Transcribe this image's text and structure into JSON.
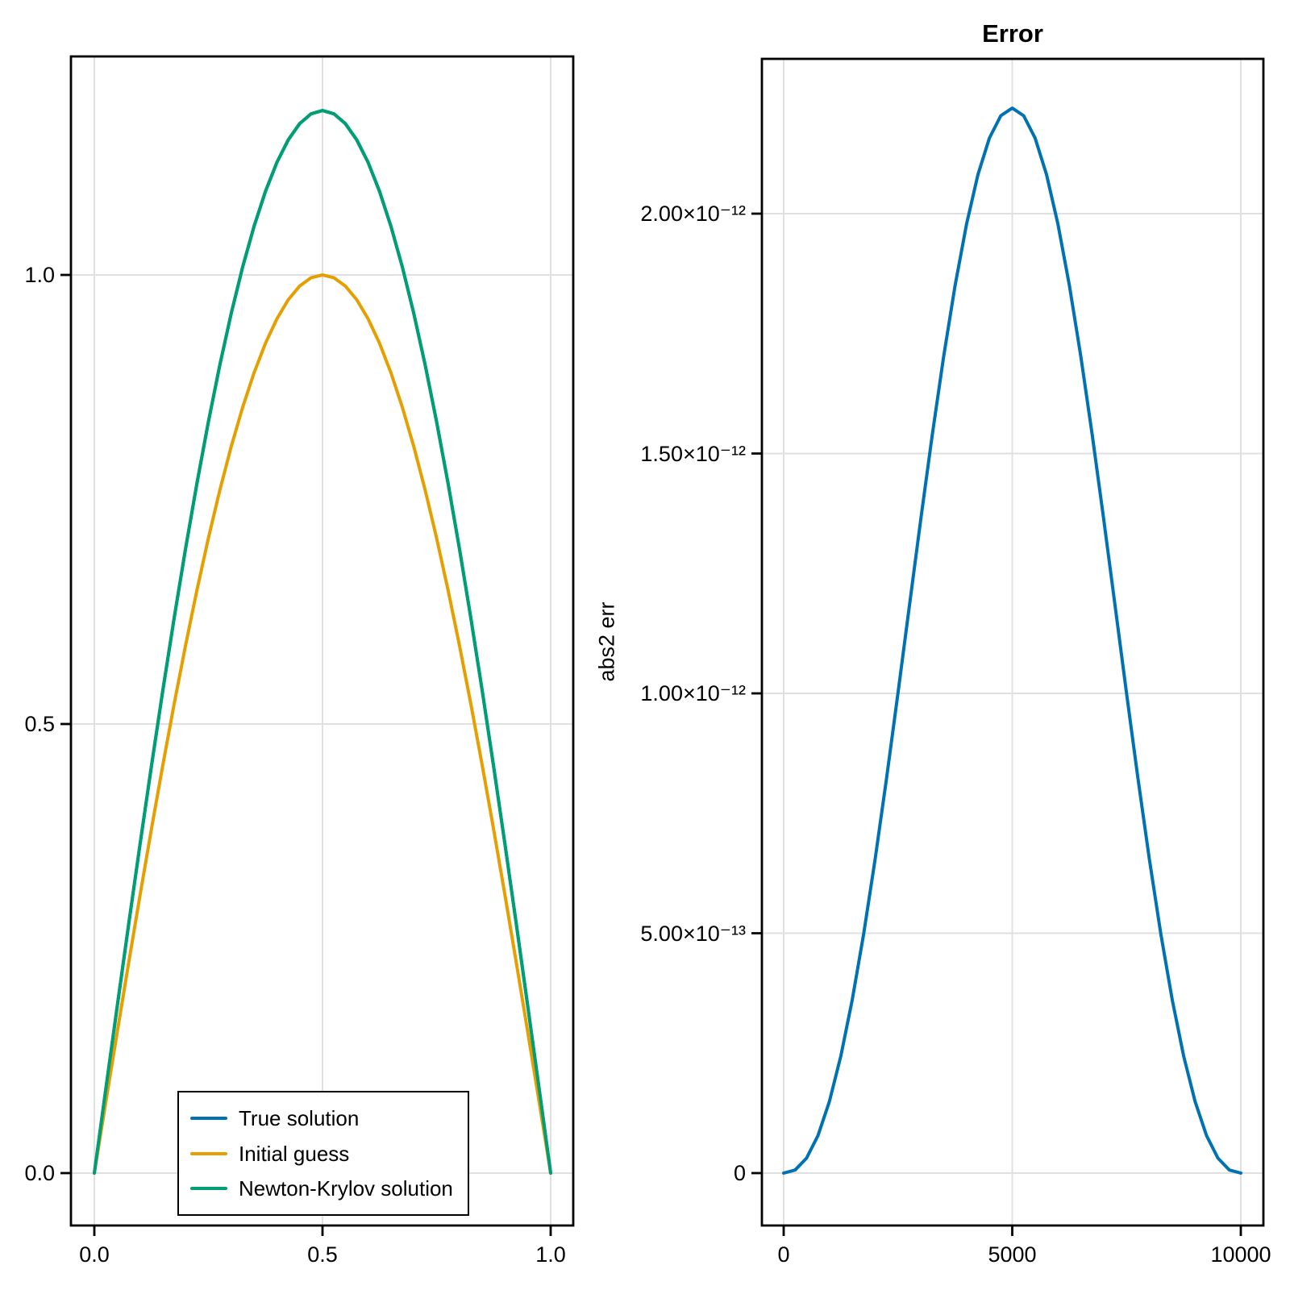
{
  "figure": {
    "background": "#FFFFFF",
    "text_color": "#000000",
    "grid_color": "#E0E0E0",
    "spine_color": "#000000"
  },
  "legend": {
    "entries": [
      {
        "label": "True solution",
        "color": "#0072B2"
      },
      {
        "label": "Initial guess",
        "color": "#E69F00"
      },
      {
        "label": "Newton-Krylov solution",
        "color": "#009E73"
      }
    ]
  },
  "chart_data": [
    {
      "type": "line",
      "title": "",
      "xlabel": "",
      "ylabel": "",
      "grid": true,
      "legend_position": "bottom-left",
      "xlim": [
        -0.051,
        1.05
      ],
      "ylim": [
        -0.058,
        1.243
      ],
      "xticks": {
        "values": [
          0.0,
          0.5,
          1.0
        ],
        "labels": [
          "0.0",
          "0.5",
          "1.0"
        ]
      },
      "yticks": {
        "values": [
          0.0,
          0.5,
          1.0
        ],
        "labels": [
          "0.0",
          "0.5",
          "1.0"
        ]
      },
      "x": [
        0,
        0.025,
        0.05,
        0.075,
        0.1,
        0.125,
        0.15,
        0.175,
        0.2,
        0.225,
        0.25,
        0.275,
        0.3,
        0.325,
        0.35,
        0.375,
        0.4,
        0.425,
        0.45,
        0.475,
        0.5,
        0.525,
        0.55,
        0.575,
        0.6,
        0.625,
        0.65,
        0.675,
        0.7,
        0.725,
        0.75,
        0.775,
        0.8,
        0.825,
        0.85,
        0.875,
        0.9,
        0.925,
        0.95,
        0.975,
        1.0
      ],
      "series": [
        {
          "name": "True solution",
          "color": "#0072B2",
          "y": [
            0,
            0.0929,
            0.1851,
            0.2762,
            0.3656,
            0.4527,
            0.5371,
            0.6182,
            0.6955,
            0.7684,
            0.8366,
            0.8997,
            0.9572,
            1.0088,
            1.0541,
            1.093,
            1.1252,
            1.1504,
            1.1685,
            1.1794,
            1.1831,
            1.1794,
            1.1685,
            1.1504,
            1.1252,
            1.093,
            1.0541,
            1.0088,
            0.9572,
            0.8997,
            0.8366,
            0.7684,
            0.6955,
            0.6182,
            0.5371,
            0.4527,
            0.3656,
            0.2762,
            0.1851,
            0.0929,
            0
          ]
        },
        {
          "name": "Initial guess",
          "color": "#E69F00",
          "y": [
            0,
            0.0785,
            0.1564,
            0.2334,
            0.309,
            0.3827,
            0.454,
            0.5225,
            0.5878,
            0.6494,
            0.7071,
            0.7604,
            0.809,
            0.8526,
            0.891,
            0.9239,
            0.9511,
            0.9724,
            0.9877,
            0.9969,
            1,
            0.9969,
            0.9877,
            0.9724,
            0.9511,
            0.9239,
            0.891,
            0.8526,
            0.809,
            0.7604,
            0.7071,
            0.6494,
            0.5878,
            0.5225,
            0.454,
            0.3827,
            0.309,
            0.2334,
            0.1564,
            0.0785,
            0
          ]
        },
        {
          "name": "Newton-Krylov solution",
          "color": "#009E73",
          "y": [
            0,
            0.0929,
            0.1851,
            0.2762,
            0.3656,
            0.4527,
            0.5371,
            0.6182,
            0.6955,
            0.7684,
            0.8366,
            0.8997,
            0.9572,
            1.0088,
            1.0541,
            1.093,
            1.1252,
            1.1504,
            1.1685,
            1.1794,
            1.1831,
            1.1794,
            1.1685,
            1.1504,
            1.1252,
            1.093,
            1.0541,
            1.0088,
            0.9572,
            0.8997,
            0.8366,
            0.7684,
            0.6955,
            0.6182,
            0.5371,
            0.4527,
            0.3656,
            0.2762,
            0.1851,
            0.0929,
            0
          ]
        }
      ]
    },
    {
      "type": "line",
      "title": "Error",
      "xlabel": "",
      "ylabel": "abs2 err",
      "grid": true,
      "xlim": [
        -480,
        10500
      ],
      "ylim": [
        -1.1e-13,
        2.33e-12
      ],
      "xticks": {
        "values": [
          0,
          5000,
          10000
        ],
        "labels": [
          "0",
          "5000",
          "10000"
        ]
      },
      "yticks": {
        "values": [
          0,
          5e-13,
          1e-12,
          1.5e-12,
          2e-12
        ],
        "labels": [
          "0",
          "5.00×10⁻¹³",
          "1.00×10⁻¹²",
          "1.50×10⁻¹²",
          "2.00×10⁻¹²"
        ]
      },
      "x": [
        0,
        250,
        500,
        750,
        1000,
        1250,
        1500,
        1750,
        2000,
        2250,
        2500,
        2750,
        3000,
        3250,
        3500,
        3750,
        4000,
        4250,
        4500,
        4750,
        5000,
        5250,
        5500,
        5750,
        6000,
        6250,
        6500,
        6750,
        7000,
        7250,
        7500,
        7750,
        8000,
        8250,
        8500,
        8750,
        9000,
        9250,
        9500,
        9750,
        10000
      ],
      "series": [
        {
          "name": "abs2 err",
          "color": "#0072B2",
          "y": [
            0,
            6.4e-15,
            3.11e-14,
            7.81e-14,
            1.492e-13,
            2.438e-13,
            3.612e-13,
            4.986e-13,
            6.54e-13,
            8.227e-13,
            1.0003e-12,
            1.1824e-12,
            1.3635e-12,
            1.5385e-12,
            1.7025e-12,
            1.8504e-12,
            1.978e-12,
            2.0815e-12,
            2.1576e-12,
            2.2042e-12,
            2.22e-12,
            2.2042e-12,
            2.1576e-12,
            2.0815e-12,
            1.978e-12,
            1.8504e-12,
            1.7025e-12,
            1.5385e-12,
            1.3635e-12,
            1.1824e-12,
            1.0003e-12,
            8.227e-13,
            6.54e-13,
            4.986e-13,
            3.612e-13,
            2.438e-13,
            1.492e-13,
            7.81e-14,
            3.11e-14,
            6.4e-15,
            0
          ]
        }
      ]
    }
  ]
}
